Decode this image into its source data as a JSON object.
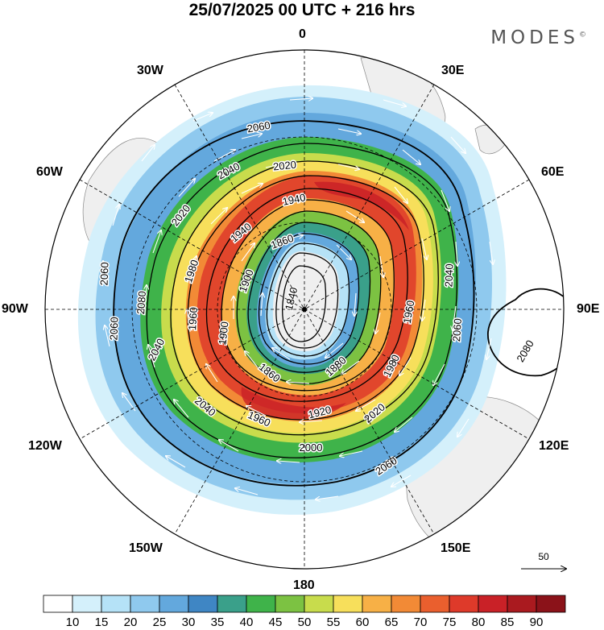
{
  "title": "25/07/2025  00 UTC  + 216 hrs",
  "brand": "MODES",
  "brand_mark": "©",
  "longitude_labels": {
    "n": "0",
    "e30": "30E",
    "e60": "60E",
    "e90": "90E",
    "e120": "120E",
    "e150": "150E",
    "s": "180",
    "w150": "150W",
    "w120": "120W",
    "w90": "90W",
    "w60": "60W",
    "w30": "30W"
  },
  "contour_labels": [
    "1840",
    "1860",
    "1880",
    "1900",
    "1920",
    "1940",
    "1960",
    "1980",
    "2000",
    "2020",
    "2040",
    "2060",
    "2080"
  ],
  "vector_reference": "50",
  "colorbar": {
    "ticks": [
      "10",
      "15",
      "20",
      "25",
      "30",
      "35",
      "40",
      "45",
      "50",
      "55",
      "60",
      "65",
      "70",
      "75",
      "80",
      "85",
      "90"
    ],
    "colors": [
      "#ffffff",
      "#d4f0fb",
      "#b5e2f7",
      "#8fc9ee",
      "#63a8dd",
      "#3f86c4",
      "#3aa08a",
      "#3fb34a",
      "#7cc242",
      "#c8dc4c",
      "#f7df5b",
      "#f7b046",
      "#f28a36",
      "#ea5f2e",
      "#de3a2a",
      "#c92127",
      "#aa1a1f",
      "#8b1219"
    ]
  },
  "colors": {
    "land": "#efefef",
    "coast": "#888888",
    "grid": "#000000"
  }
}
